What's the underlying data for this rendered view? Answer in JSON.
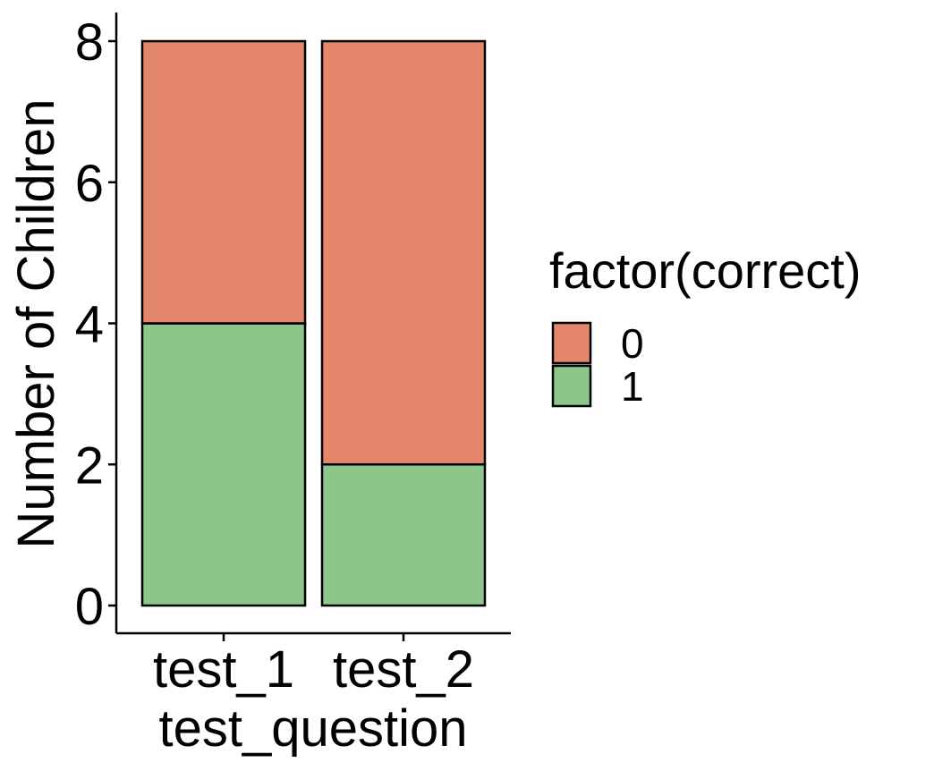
{
  "chart_data": {
    "type": "bar",
    "stacked": true,
    "categories": [
      "test_1",
      "test_2"
    ],
    "series": [
      {
        "name": "1",
        "values": [
          4,
          2
        ],
        "color": "#8DC68A"
      },
      {
        "name": "0",
        "values": [
          4,
          6
        ],
        "color": "#E3866A"
      }
    ],
    "xlabel": "test_question",
    "ylabel": "Number of Children",
    "ylim": [
      0,
      8
    ],
    "yticks": [
      "0",
      "2",
      "4",
      "6",
      "8"
    ],
    "legend": {
      "title": "factor(correct)",
      "position": "right",
      "entries": [
        {
          "label": "0",
          "color": "#E3866A"
        },
        {
          "label": "1",
          "color": "#8DC68A"
        }
      ]
    },
    "grid": false
  }
}
